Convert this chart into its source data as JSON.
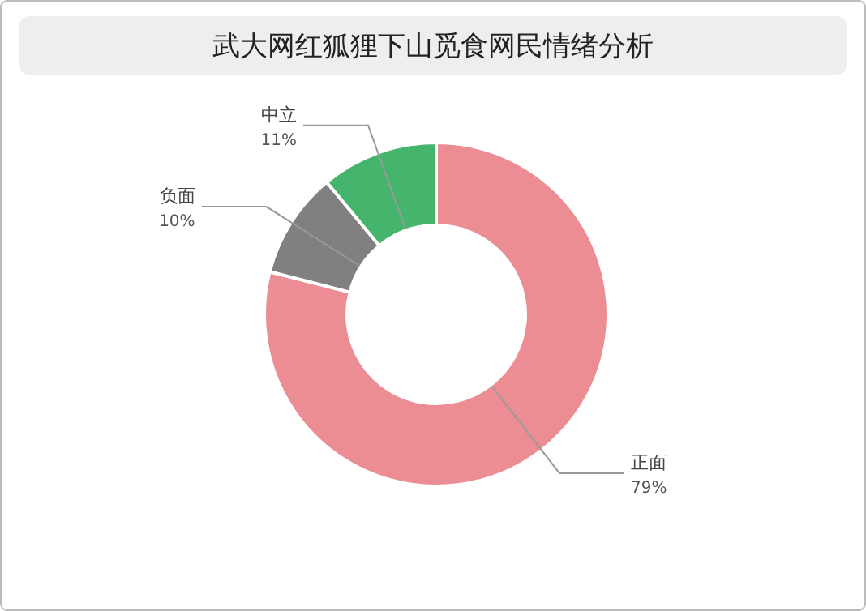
{
  "chart_data": {
    "type": "donut",
    "title": "武大网红狐狸下山觅食网民情绪分析",
    "categories": [
      "正面",
      "负面",
      "中立"
    ],
    "values": [
      79,
      10,
      11
    ],
    "value_labels": [
      "79%",
      "10%",
      "11%"
    ],
    "colors": [
      "#ec8c93",
      "#808080",
      "#45b46c"
    ]
  }
}
